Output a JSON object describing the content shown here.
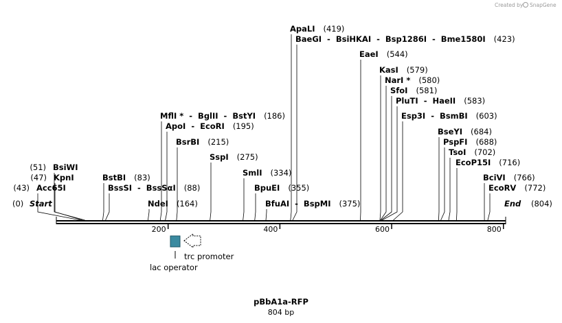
{
  "credit": {
    "prefix": "Created by",
    "brand": "SnapGene"
  },
  "title": "pBbA1a-RFP",
  "length_label": "804 bp",
  "sequence_length": 804,
  "colors": {
    "backbone": "#000000",
    "lac_operator": "#3a8aa0",
    "trc_promoter": "#ffffff"
  },
  "ends": {
    "start": {
      "label": "Start",
      "pos_label": "(0)"
    },
    "end": {
      "label": "End",
      "pos_label": "(804)"
    }
  },
  "ticks": [
    {
      "value": 200,
      "label": "200"
    },
    {
      "value": 400,
      "label": "400"
    },
    {
      "value": 600,
      "label": "600"
    },
    {
      "value": 800,
      "label": "800"
    }
  ],
  "features": {
    "lac_operator": {
      "label": "lac operator",
      "start": 204,
      "end": 222,
      "icon": "box"
    },
    "trc_promoter": {
      "label": "trc promoter",
      "start": 228,
      "end": 257,
      "icon": "arrow-left-outline"
    }
  },
  "sites": [
    {
      "id": "acc65i",
      "text": "Acc65I",
      "pos": "(43)",
      "bp": 43
    },
    {
      "id": "kpni",
      "text": "KpnI",
      "pos": "(47)",
      "bp": 47
    },
    {
      "id": "bsiwi",
      "text": "BsiWI",
      "pos": "(51)",
      "bp": 51
    },
    {
      "id": "bstbi",
      "text": "BstBI",
      "pos": "(83)",
      "bp": 83
    },
    {
      "id": "bsssi",
      "text": "BssSI  -  BssSαI",
      "pos": "(88)",
      "bp": 88
    },
    {
      "id": "ndei",
      "text": "NdeI",
      "pos": "(164)",
      "bp": 164
    },
    {
      "id": "mfli",
      "text": "MflI *  -  BglII  -  BstYI",
      "pos": "(186)",
      "bp": 186
    },
    {
      "id": "apoi",
      "text": "ApoI  -  EcoRI",
      "pos": "(195)",
      "bp": 195
    },
    {
      "id": "bsrbi",
      "text": "BsrBI",
      "pos": "(215)",
      "bp": 215
    },
    {
      "id": "sspi",
      "text": "SspI",
      "pos": "(275)",
      "bp": 275
    },
    {
      "id": "smli",
      "text": "SmlI",
      "pos": "(334)",
      "bp": 334
    },
    {
      "id": "bpuei",
      "text": "BpuEI",
      "pos": "(355)",
      "bp": 355
    },
    {
      "id": "bfuai",
      "text": "BfuAI  -  BspMI",
      "pos": "(375)",
      "bp": 375
    },
    {
      "id": "apali",
      "text": "ApaLI",
      "pos": "(419)",
      "bp": 419
    },
    {
      "id": "baegi",
      "text": "BaeGI  -  BsiHKAI  -  Bsp1286I  -  Bme1580I",
      "pos": "(423)",
      "bp": 423
    },
    {
      "id": "eaei",
      "text": "EaeI",
      "pos": "(544)",
      "bp": 544
    },
    {
      "id": "kasi",
      "text": "KasI",
      "pos": "(579)",
      "bp": 579
    },
    {
      "id": "nari",
      "text": "NarI *",
      "pos": "(580)",
      "bp": 580
    },
    {
      "id": "sfoi",
      "text": "SfoI",
      "pos": "(581)",
      "bp": 581
    },
    {
      "id": "pluti",
      "text": "PluTI  -  HaeII",
      "pos": "(583)",
      "bp": 583
    },
    {
      "id": "esp3i",
      "text": "Esp3I  -  BsmBI",
      "pos": "(603)",
      "bp": 603
    },
    {
      "id": "bseyi",
      "text": "BseYI",
      "pos": "(684)",
      "bp": 684
    },
    {
      "id": "pspfi",
      "text": "PspFI",
      "pos": "(688)",
      "bp": 688
    },
    {
      "id": "tsoi",
      "text": "TsoI",
      "pos": "(702)",
      "bp": 702
    },
    {
      "id": "ecop15i",
      "text": "EcoP15I",
      "pos": "(716)",
      "bp": 716
    },
    {
      "id": "bcivi",
      "text": "BciVI",
      "pos": "(766)",
      "bp": 766
    },
    {
      "id": "ecorv",
      "text": "EcoRV",
      "pos": "(772)",
      "bp": 772
    }
  ]
}
